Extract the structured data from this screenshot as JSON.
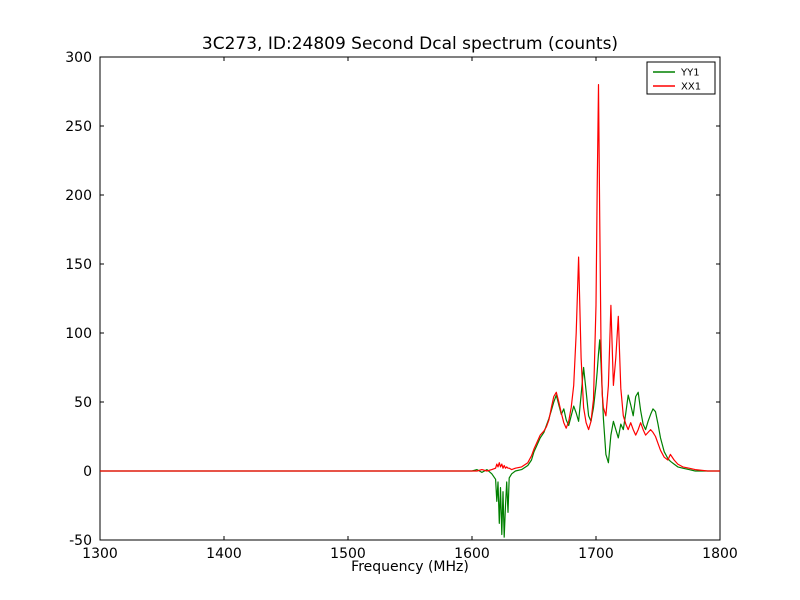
{
  "figure": {
    "title": "3C273, ID:24809 Second Dcal spectrum (counts)",
    "xlabel": "Frequency (MHz)"
  },
  "legend": {
    "entries": [
      {
        "label": "YY1",
        "color": "#008000"
      },
      {
        "label": "XX1",
        "color": "#ff0000"
      }
    ],
    "position": "upper right"
  },
  "chart_data": {
    "type": "line",
    "title": "3C273, ID:24809 Second Dcal spectrum (counts)",
    "xlabel": "Frequency (MHz)",
    "ylabel": "",
    "xlim": [
      1300,
      1800
    ],
    "ylim": [
      -50,
      300
    ],
    "x_ticks": [
      1300,
      1400,
      1500,
      1600,
      1700,
      1800
    ],
    "y_ticks": [
      -50,
      0,
      50,
      100,
      150,
      200,
      250,
      300
    ],
    "grid": false,
    "legend_position": "upper right",
    "x": [
      1300,
      1350,
      1400,
      1450,
      1500,
      1550,
      1580,
      1595,
      1600,
      1604,
      1608,
      1612,
      1616,
      1619,
      1620,
      1621,
      1622,
      1623,
      1624,
      1625,
      1626,
      1627,
      1628,
      1629,
      1630,
      1632,
      1635,
      1640,
      1645,
      1648,
      1650,
      1652,
      1655,
      1658,
      1660,
      1662,
      1664,
      1666,
      1668,
      1670,
      1672,
      1674,
      1676,
      1678,
      1680,
      1682,
      1684,
      1686,
      1688,
      1690,
      1692,
      1694,
      1696,
      1698,
      1700,
      1701,
      1702,
      1703,
      1704,
      1705,
      1706,
      1708,
      1710,
      1712,
      1714,
      1716,
      1718,
      1720,
      1722,
      1724,
      1726,
      1728,
      1730,
      1732,
      1734,
      1736,
      1738,
      1740,
      1742,
      1744,
      1746,
      1748,
      1750,
      1752,
      1755,
      1758,
      1760,
      1763,
      1766,
      1770,
      1775,
      1780,
      1790,
      1800
    ],
    "series": [
      {
        "name": "YY1",
        "color": "#008000",
        "values": [
          0,
          0,
          0,
          0,
          0,
          0,
          0,
          0,
          0,
          1,
          -1,
          1,
          -2,
          -6,
          -22,
          -8,
          -38,
          -12,
          -46,
          -15,
          -48,
          -25,
          -8,
          -30,
          -5,
          -2,
          0,
          1,
          4,
          8,
          14,
          18,
          24,
          28,
          33,
          38,
          44,
          50,
          55,
          48,
          41,
          45,
          37,
          33,
          40,
          47,
          42,
          36,
          55,
          75,
          58,
          40,
          36,
          46,
          62,
          72,
          85,
          95,
          78,
          58,
          38,
          12,
          6,
          26,
          36,
          30,
          24,
          34,
          30,
          42,
          55,
          48,
          40,
          54,
          57,
          44,
          34,
          30,
          36,
          41,
          45,
          43,
          34,
          24,
          14,
          9,
          7,
          5,
          3,
          2,
          1,
          0,
          0,
          0
        ]
      },
      {
        "name": "XX1",
        "color": "#ff0000",
        "values": [
          0,
          0,
          0,
          0,
          0,
          0,
          0,
          0,
          0,
          0,
          1,
          0,
          1,
          2,
          5,
          3,
          6,
          3,
          5,
          2,
          4,
          2,
          3,
          2,
          2,
          1,
          2,
          3,
          6,
          11,
          16,
          20,
          26,
          29,
          32,
          37,
          46,
          54,
          57,
          50,
          42,
          35,
          31,
          36,
          46,
          62,
          100,
          155,
          82,
          46,
          35,
          30,
          36,
          52,
          120,
          205,
          280,
          185,
          92,
          56,
          46,
          40,
          62,
          120,
          62,
          82,
          112,
          60,
          40,
          34,
          30,
          35,
          30,
          26,
          30,
          35,
          30,
          26,
          28,
          30,
          28,
          25,
          20,
          15,
          10,
          8,
          12,
          8,
          5,
          3,
          2,
          1,
          0,
          0
        ]
      }
    ]
  }
}
